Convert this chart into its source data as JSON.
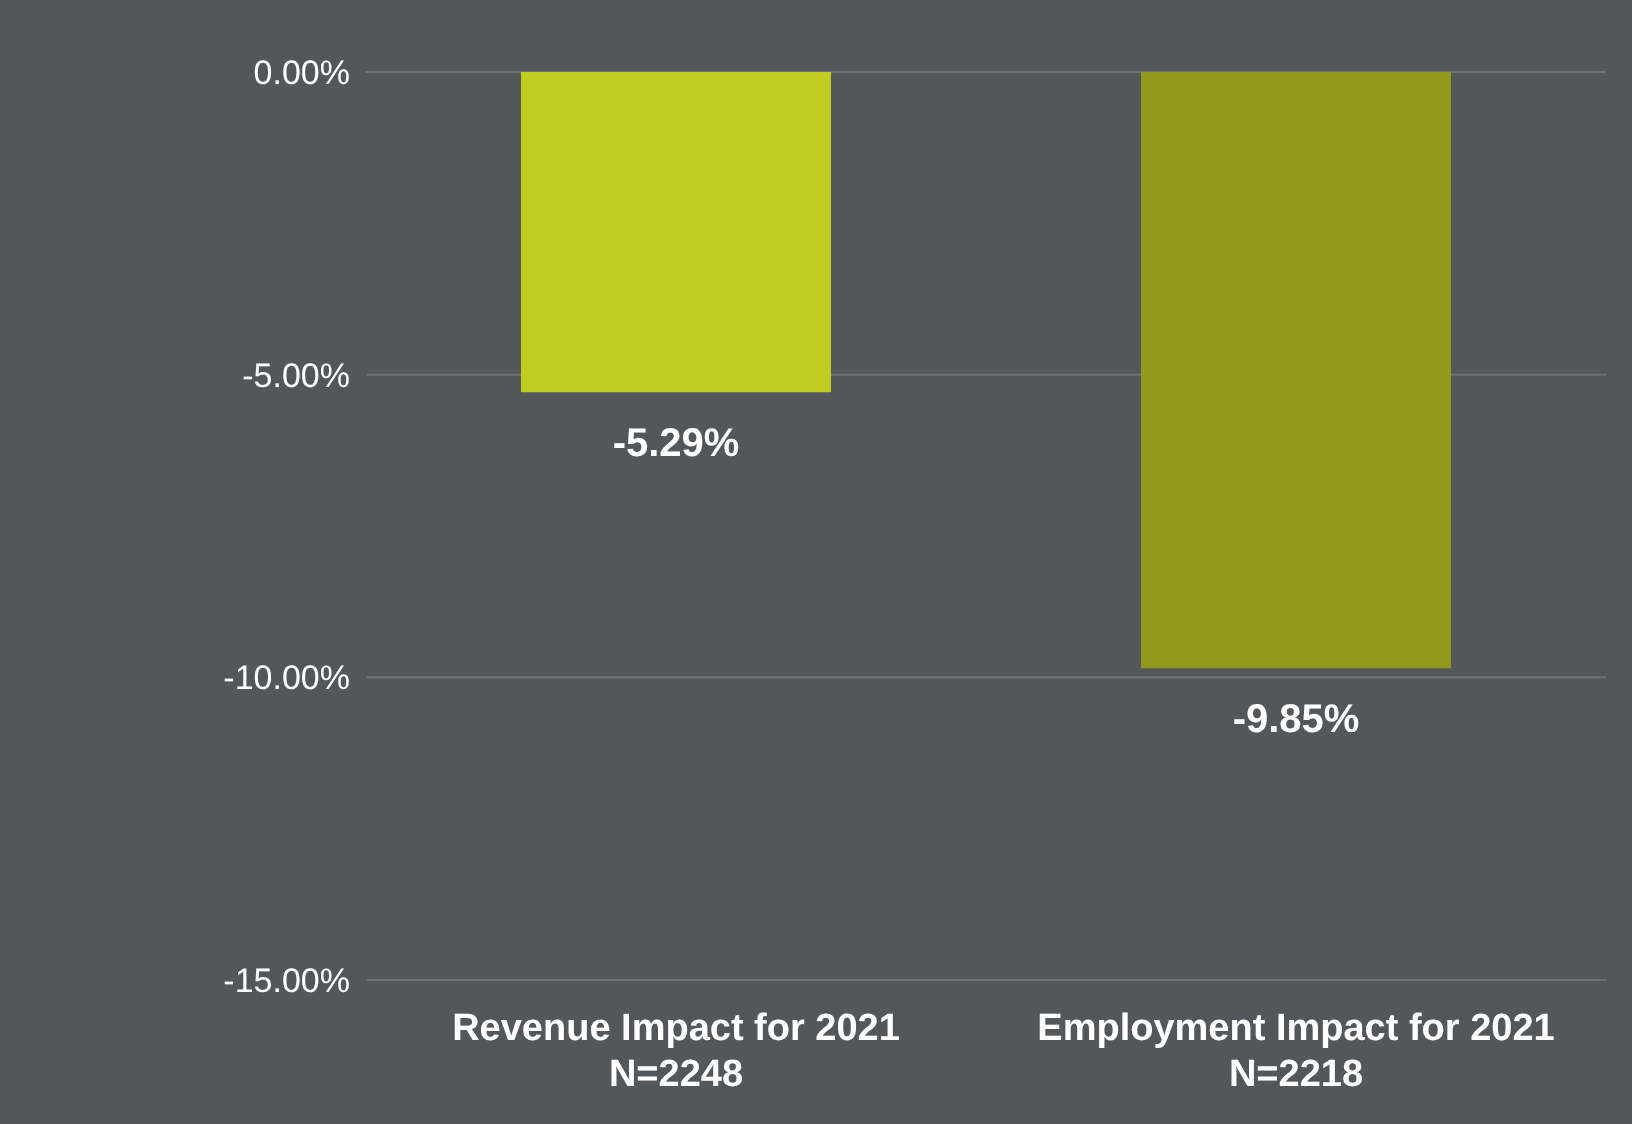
{
  "chart_data": {
    "type": "bar",
    "categories": [
      "Revenue Impact for 2021\nN=2248",
      "Employment Impact for 2021\nN=2218"
    ],
    "values": [
      -5.29,
      -9.85
    ],
    "colors": [
      "#c0cc22",
      "#929a1e"
    ],
    "value_labels": [
      "-5.29%",
      "-9.85%"
    ],
    "ylim": [
      -15,
      0
    ],
    "yticks": [
      {
        "value": 0,
        "label": "0.00%"
      },
      {
        "value": -5,
        "label": "-5.00%"
      },
      {
        "value": -10,
        "label": "-10.00%"
      },
      {
        "value": -15,
        "label": "-15.00%"
      }
    ],
    "grid": "y",
    "legend": false
  }
}
